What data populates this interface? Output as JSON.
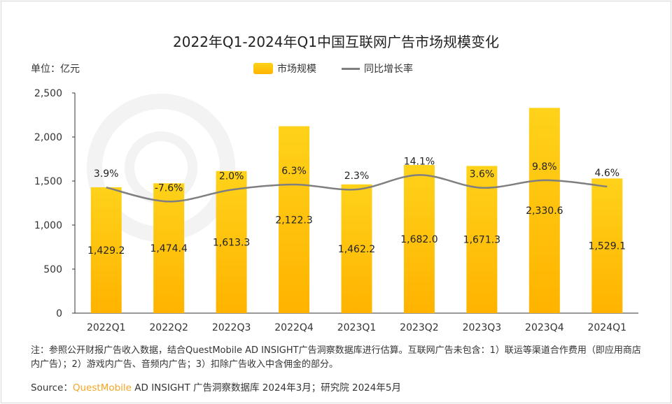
{
  "chart_data": {
    "type": "bar",
    "title": "2022年Q1-2024年Q1中国互联网广告市场规模变化",
    "unit_label": "单位：亿元",
    "categories": [
      "2022Q1",
      "2022Q2",
      "2022Q3",
      "2022Q4",
      "2023Q1",
      "2023Q2",
      "2023Q3",
      "2023Q4",
      "2024Q1"
    ],
    "series": [
      {
        "name": "市场规模",
        "type": "bar",
        "values": [
          1429.2,
          1474.4,
          1613.3,
          2122.3,
          1462.2,
          1682.0,
          1671.3,
          2330.6,
          1529.1
        ],
        "labels": [
          "1,429.2",
          "1,474.4",
          "1,613.3",
          "2,122.3",
          "1,462.2",
          "1,682.0",
          "1,671.3",
          "2,330.6",
          "1,529.1"
        ],
        "color": "#ffc107"
      },
      {
        "name": "同比增长率",
        "type": "line",
        "unit": "%",
        "values": [
          3.9,
          -7.6,
          2.0,
          6.3,
          2.3,
          14.1,
          3.6,
          9.8,
          4.6
        ],
        "labels": [
          "3.9%",
          "-7.6%",
          "2.0%",
          "6.3%",
          "2.3%",
          "14.1%",
          "3.6%",
          "9.8%",
          "4.6%"
        ],
        "color": "#7f7f7f"
      }
    ],
    "ylim": [
      0,
      2500
    ],
    "yticks": [
      "0",
      "500",
      "1,000",
      "1,500",
      "2,000",
      "2,500"
    ],
    "ytick_values": [
      0,
      500,
      1000,
      1500,
      2000,
      2500
    ],
    "grid": false,
    "legend": "top-center"
  },
  "note": "注：参照公开财报广告收入数据，结合QuestMobile AD INSIGHT广告洞察数据库进行估算。互联网广告未包含：1）联运等渠道合作费用（即应用商店内广告）；2）游戏内广告、音频内广告；3）扣除广告收入中含佣金的部分。",
  "source": {
    "label": "Source：",
    "brand": "QuestMobile",
    "text": " AD INSIGHT 广告洞察数据库 2024年3月；研究院 2024年5月"
  },
  "watermark": "QUESTMOBILE"
}
